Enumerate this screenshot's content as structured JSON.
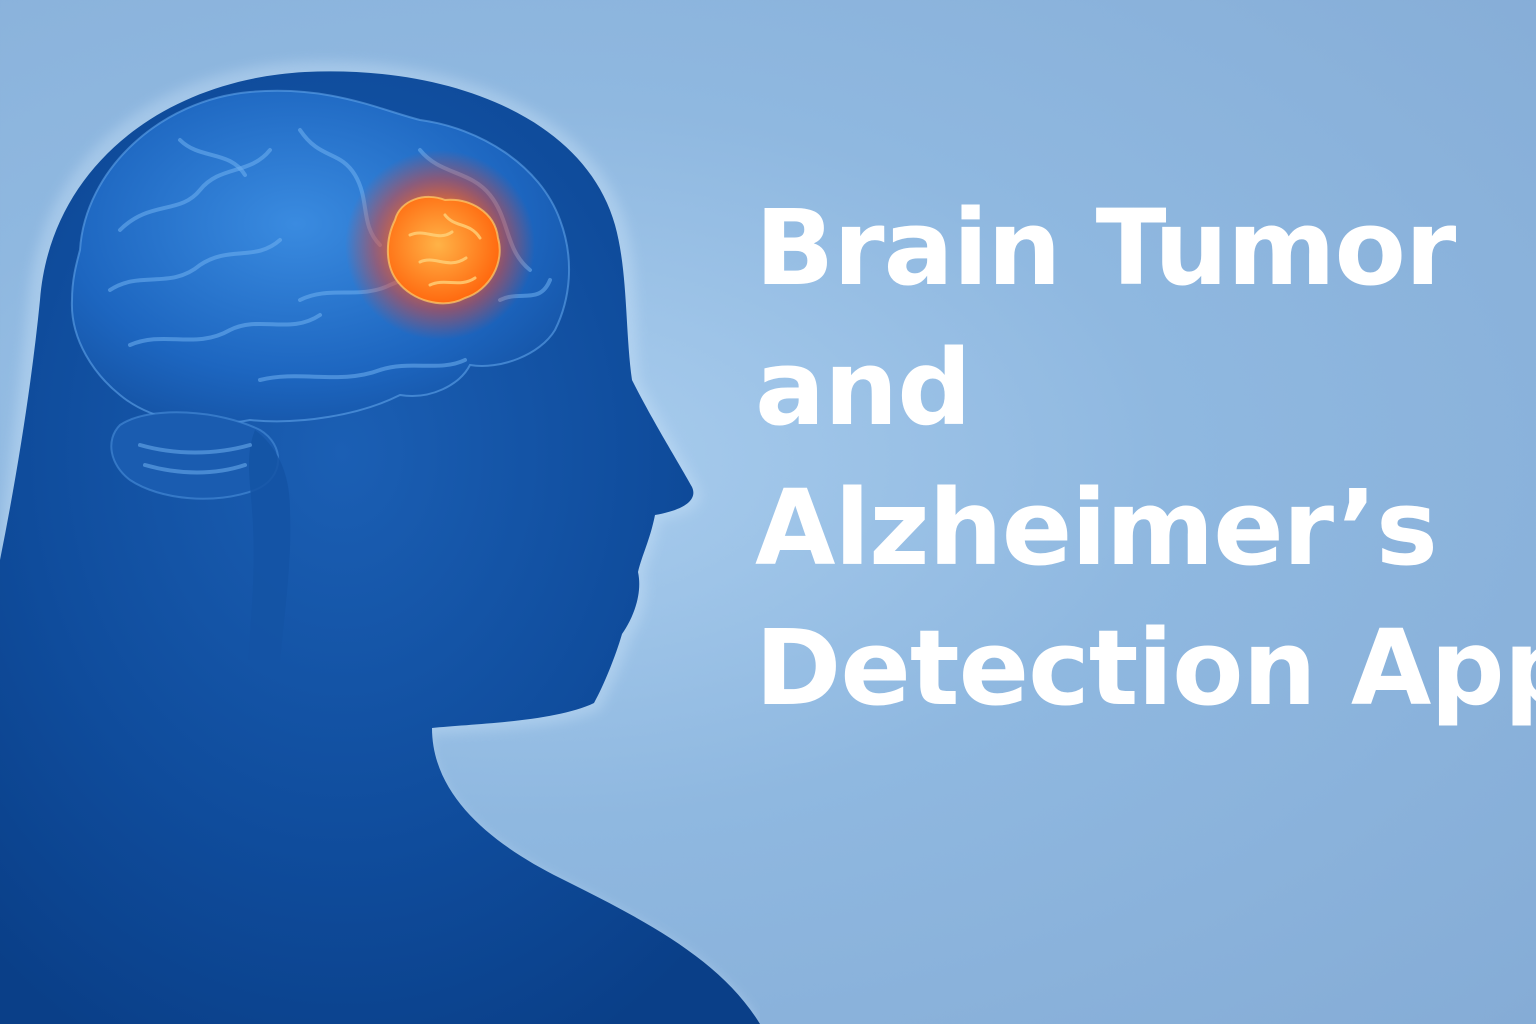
{
  "title_lines": [
    "Brain Tumor",
    "and",
    "Alzheimer’s",
    "Detection App"
  ],
  "colors": {
    "background": "#8fb8e0",
    "silhouette": "#0d4f9e",
    "brain": "#1f6cc4",
    "tumor": "#ff6a1a",
    "title_text": "#ffffff"
  },
  "illustration": {
    "subject": "human head profile with brain",
    "highlight": "tumor-glow"
  }
}
